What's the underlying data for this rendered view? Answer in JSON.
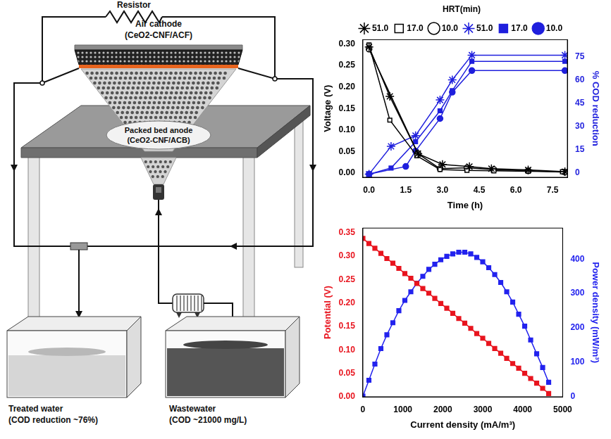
{
  "diagram": {
    "resistor": "Resistor",
    "air_cathode": {
      "label": "Air cathode",
      "material": "(CeO2-CNF/ACF)"
    },
    "anode": {
      "label": "Packed bed anode",
      "material": "(CeO2-CNF/ACB)"
    },
    "treated_water": {
      "label": "Treated water",
      "note": "(COD reduction ~76%)"
    },
    "wastewater": {
      "label": "Wastewater",
      "note": "(COD ~21000 mg/L)"
    }
  },
  "chart_data": [
    {
      "type": "line",
      "x_label": "Time (h)",
      "y_label": "Voltage (V)",
      "y2_label": "% COD reduction",
      "legend": "top",
      "legend_title": "HRT(min)",
      "grid": false,
      "xlim": [
        -0.25,
        8.1
      ],
      "xticks": [
        {
          "value": 0,
          "label": "0.0"
        },
        1.5,
        {
          "value": 3,
          "label": "3.0"
        },
        4.5,
        {
          "value": 6,
          "label": "6.0"
        },
        7.5
      ],
      "ylim": [
        -0.01,
        0.31
      ],
      "yticks": [
        {
          "value": 0,
          "label": "0.00"
        },
        0.05,
        {
          "value": 0.1,
          "label": "0.10"
        },
        0.15,
        {
          "value": 0.2,
          "label": "0.20"
        },
        0.25,
        {
          "value": 0.3,
          "label": "0.30"
        }
      ],
      "y2lim": [
        -3,
        86
      ],
      "y2ticks": [
        0,
        15,
        30,
        45,
        60,
        75
      ],
      "series": [
        {
          "name": "51.0",
          "color": "#000000",
          "marker": "star_open",
          "x": [
            0,
            0.85,
            2.0,
            3.0,
            4.1,
            5.0,
            6.5,
            8.0
          ],
          "values": [
            0.293,
            0.178,
            0.045,
            0.02,
            0.015,
            0.01,
            0.007,
            0.003
          ]
        },
        {
          "name": "17.0",
          "color": "#000000",
          "marker": "square_open",
          "x": [
            0,
            0.85,
            1.95,
            2.9,
            4.0,
            5.1,
            6.5,
            7.9
          ],
          "values": [
            0.298,
            0.123,
            0.04,
            0.008,
            0.006,
            0.005,
            0.004,
            0.003
          ]
        },
        {
          "name": "10.0",
          "color": "#000000",
          "marker": "circle_open",
          "x": [
            0,
            2.0,
            2.9,
            4.0,
            5.1,
            6.5,
            8.0
          ],
          "values": [
            0.288,
            0.045,
            0.01,
            0.012,
            0.008,
            0.005,
            0.002
          ]
        },
        {
          "name": "51.0",
          "color": "#1f1fdd",
          "marker": "star",
          "axis": "y2",
          "x": [
            0,
            0.9,
            1.9,
            2.9,
            3.4,
            4.2,
            8.0
          ],
          "values": [
            -1,
            17,
            24,
            47,
            60,
            76,
            76
          ]
        },
        {
          "name": "17.0",
          "color": "#1f1fdd",
          "marker": "square",
          "axis": "y2",
          "x": [
            0,
            0.9,
            1.9,
            2.9,
            3.4,
            4.2,
            8.0
          ],
          "values": [
            -1,
            3,
            20,
            40,
            53,
            72,
            72
          ]
        },
        {
          "name": "10.0",
          "color": "#1f1fdd",
          "marker": "circle",
          "axis": "y2",
          "x": [
            0,
            1.5,
            1.9,
            2.9,
            3.4,
            4.2,
            8.0
          ],
          "values": [
            -1,
            4,
            14,
            35,
            52,
            66,
            66
          ]
        }
      ]
    },
    {
      "type": "line",
      "x_label": "Current density (mA/m³)",
      "y_label": "Potential (V)",
      "y2_label": "Power density (mW/m³)",
      "grid": false,
      "xlim": [
        0,
        5000
      ],
      "xticks": [
        0,
        1000,
        2000,
        3000,
        4000,
        5000
      ],
      "ylim": [
        0,
        0.36
      ],
      "yticks": [
        {
          "value": 0,
          "label": "0.00"
        },
        0.05,
        {
          "value": 0.1,
          "label": "0.10"
        },
        0.15,
        {
          "value": 0.2,
          "label": "0.20"
        },
        0.25,
        {
          "value": 0.3,
          "label": "0.30"
        },
        0.35
      ],
      "y2lim": [
        0,
        490
      ],
      "y2ticks": [
        0,
        100,
        200,
        300,
        400
      ],
      "x": [
        0,
        150,
        300,
        450,
        600,
        750,
        900,
        1050,
        1200,
        1350,
        1500,
        1650,
        1800,
        1950,
        2100,
        2250,
        2400,
        2550,
        2700,
        2850,
        3000,
        3150,
        3300,
        3450,
        3600,
        3750,
        3900,
        4050,
        4200,
        4350,
        4500,
        4650
      ],
      "series": [
        {
          "color": "#e8141e",
          "marker": "square",
          "values": [
            0.338,
            0.327,
            0.317,
            0.306,
            0.295,
            0.285,
            0.274,
            0.263,
            0.253,
            0.242,
            0.231,
            0.221,
            0.21,
            0.199,
            0.189,
            0.178,
            0.167,
            0.157,
            0.146,
            0.135,
            0.125,
            0.114,
            0.103,
            0.093,
            0.082,
            0.071,
            0.061,
            0.05,
            0.039,
            0.029,
            0.018,
            0.007
          ]
        },
        {
          "color": "#2222ee",
          "marker": "square",
          "axis": "y2",
          "values": [
            2,
            48,
            95,
            140,
            180,
            215,
            250,
            280,
            305,
            330,
            350,
            370,
            385,
            398,
            408,
            415,
            420,
            420,
            415,
            405,
            392,
            375,
            355,
            332,
            305,
            275,
            240,
            205,
            165,
            125,
            85,
            42
          ]
        }
      ]
    }
  ]
}
